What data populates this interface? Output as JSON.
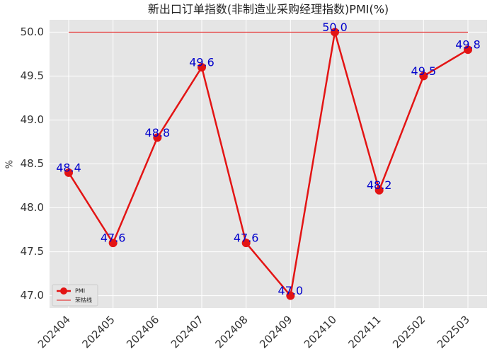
{
  "chart_data": {
    "type": "line",
    "title": "新出口订单指数(非制造业采购经理指数)PMI(%)",
    "y_label": "%",
    "categories": [
      "202404",
      "202405",
      "202406",
      "202407",
      "202408",
      "202409",
      "202410",
      "202411",
      "202502",
      "202503"
    ],
    "series": [
      {
        "name": "PMI",
        "color": "#e31414",
        "values": [
          48.4,
          47.6,
          48.8,
          49.6,
          47.6,
          47.0,
          50.0,
          48.2,
          49.5,
          49.8
        ],
        "value_labels": [
          "48.4",
          "47.6",
          "48.8",
          "49.6",
          "47.6",
          "47.0",
          "50.0",
          "48.2",
          "49.5",
          "49.8"
        ],
        "label_color": "#0000cc"
      }
    ],
    "reference_line": {
      "name": "荣枯线",
      "value": 50,
      "color": "#e31414"
    },
    "ylim": [
      46.86,
      50.14
    ],
    "yticks": [
      {
        "value": 47,
        "label": "47.0"
      },
      47.5,
      {
        "value": 48,
        "label": "48.0"
      },
      48.5,
      {
        "value": 49,
        "label": "49.0"
      },
      49.5,
      {
        "value": 50,
        "label": "50.0"
      }
    ],
    "grid": true,
    "legend": "lower left"
  }
}
